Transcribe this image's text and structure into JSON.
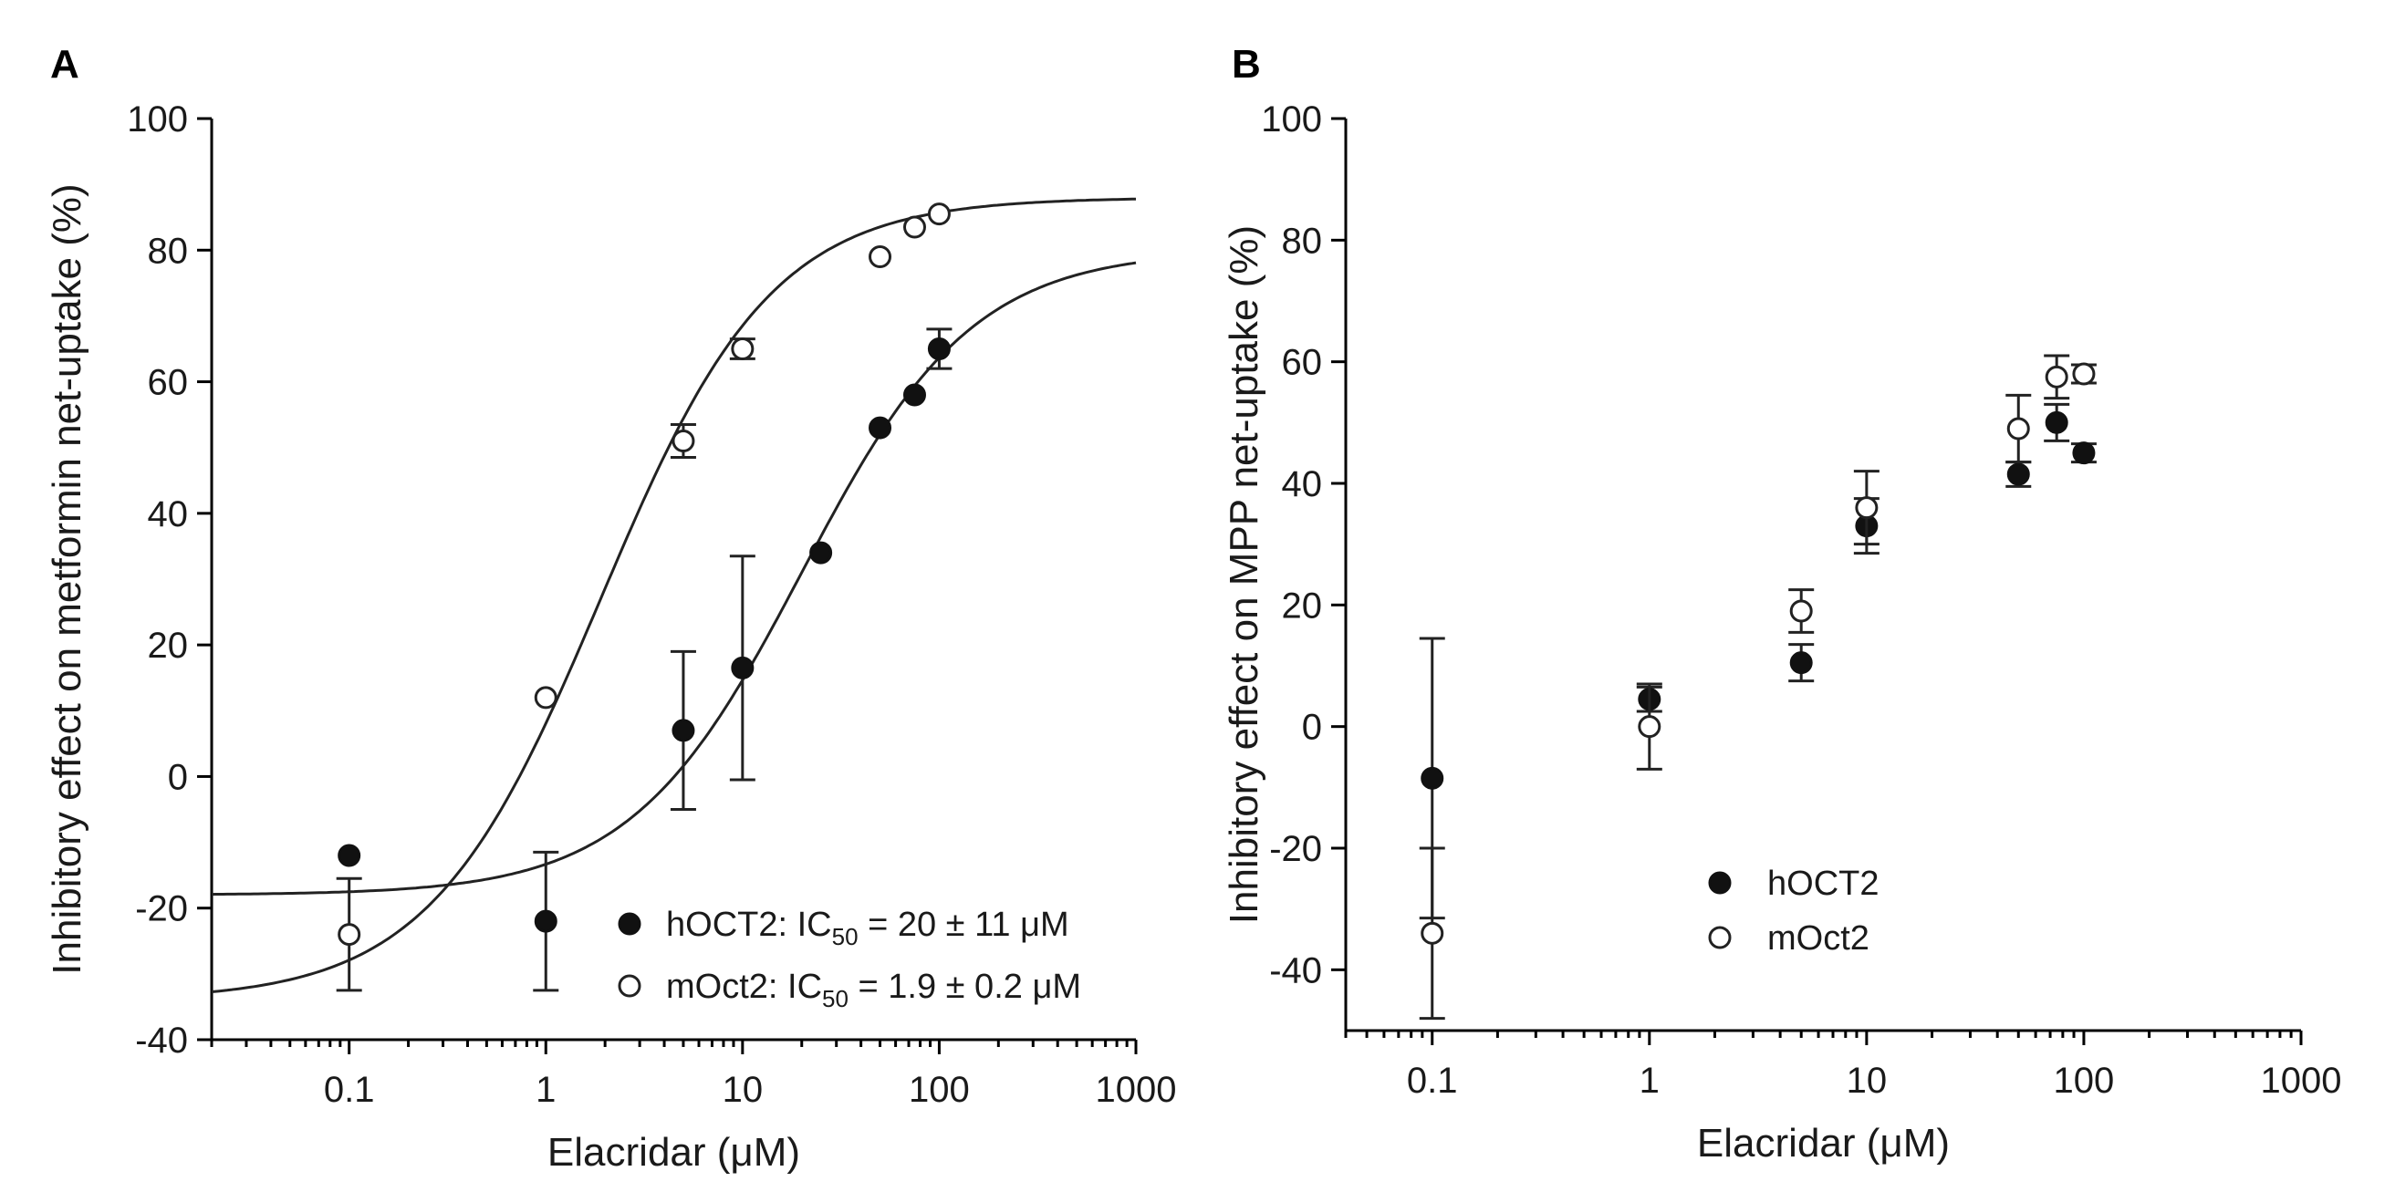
{
  "chart_data": [
    {
      "type": "scatter",
      "panel_label": "A",
      "xlabel": "Elacridar (μM)",
      "ylabel": "Inhibitory effect on metformin net-uptake (%)",
      "xscale": "log",
      "xlim": [
        0.02,
        1000
      ],
      "ylim": [
        -40,
        100
      ],
      "xticks": [
        0.1,
        1,
        10,
        100,
        1000
      ],
      "xtick_labels": [
        "0.1",
        "1",
        "10",
        "100",
        "1000"
      ],
      "yticks": [
        -40,
        -20,
        0,
        20,
        40,
        60,
        80,
        100
      ],
      "ytick_labels": [
        "-40",
        "-20",
        "0",
        "20",
        "40",
        "60",
        "80",
        "100"
      ],
      "legend_position": "bottom-right",
      "series": [
        {
          "name": "hOCT2",
          "legend_main": "hOCT2: IC",
          "legend_sub": "50",
          "legend_tail": " = 20 ± 11 μM",
          "marker": "filled",
          "x": [
            0.1,
            1,
            5,
            10,
            25,
            50,
            75,
            100
          ],
          "y": [
            -12,
            -22,
            7,
            16.5,
            34,
            53,
            58,
            65
          ],
          "err": [
            0,
            10.5,
            12,
            17,
            0,
            0,
            0,
            3
          ],
          "fit": {
            "bottom": -18,
            "top": 80,
            "ic50": 20,
            "hill": 1.0
          }
        },
        {
          "name": "mOct2",
          "legend_main": "mOct2: IC",
          "legend_sub": "50",
          "legend_tail": " = 1.9 ± 0.2 μM",
          "marker": "open",
          "x": [
            0.1,
            1,
            5,
            10,
            50,
            75,
            100
          ],
          "y": [
            -24,
            12,
            51,
            65,
            79,
            83.5,
            85.5
          ],
          "err": [
            8.5,
            0,
            2.5,
            1.5,
            0,
            0,
            0
          ],
          "fit": {
            "bottom": -34,
            "top": 88,
            "ic50": 1.9,
            "hill": 1.0
          }
        }
      ]
    },
    {
      "type": "scatter",
      "panel_label": "B",
      "xlabel": "Elacridar (μM)",
      "ylabel": "Inhibitory effect on MPP net-uptake (%)",
      "xscale": "log",
      "xlim": [
        0.04,
        1000
      ],
      "ylim": [
        -50,
        100
      ],
      "xticks": [
        0.1,
        1,
        10,
        100,
        1000
      ],
      "xtick_labels": [
        "0.1",
        "1",
        "10",
        "100",
        "1000"
      ],
      "yticks": [
        -40,
        -20,
        0,
        20,
        40,
        60,
        80,
        100
      ],
      "ytick_labels": [
        "-40",
        "-20",
        "0",
        "20",
        "40",
        "60",
        "80",
        "100"
      ],
      "legend_position": "bottom-left",
      "series": [
        {
          "name": "hOCT2",
          "legend_main": "hOCT2",
          "marker": "filled",
          "x": [
            0.1,
            1,
            5,
            10,
            50,
            75,
            100
          ],
          "y": [
            -8.5,
            4.5,
            10.5,
            33,
            41.5,
            50,
            45
          ],
          "err": [
            23,
            2,
            3,
            4.5,
            2,
            3,
            1.5
          ]
        },
        {
          "name": "mOct2",
          "legend_main": "mOct2",
          "marker": "open",
          "x": [
            0.1,
            1,
            5,
            10,
            50,
            75,
            100
          ],
          "y": [
            -34,
            0,
            19,
            36,
            49,
            57.5,
            58
          ],
          "err": [
            14,
            7,
            3.5,
            6,
            5.5,
            3.5,
            1.5
          ]
        }
      ]
    }
  ]
}
